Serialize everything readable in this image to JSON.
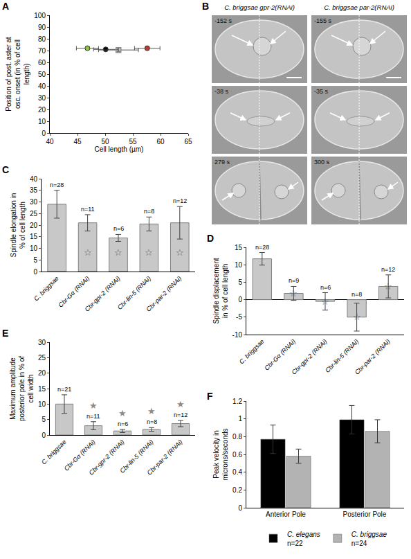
{
  "chart_data": [
    {
      "panel": "A",
      "type": "scatter",
      "xlabel": "Cell length (µm)",
      "ylabel": "Position of post. aster at osc. onset (in % of cell length)",
      "xlim": [
        40,
        65
      ],
      "xticks": [
        40,
        45,
        50,
        55,
        60,
        65
      ],
      "ylim": [
        0,
        100
      ],
      "yticks": [
        0,
        10,
        20,
        30,
        40,
        50,
        60,
        70,
        80,
        90,
        100
      ],
      "grid": false,
      "series": [
        {
          "color": "#8cc63f",
          "marker": "circle",
          "x": [
            46.8
          ],
          "values": [
            72
          ],
          "x_error": [
            2.0
          ],
          "y_error": [
            1.2
          ]
        },
        {
          "color": "#000000",
          "marker": "circle",
          "x": [
            50.1
          ],
          "values": [
            71
          ],
          "x_error": [
            2.2
          ],
          "y_error": [
            1.3
          ]
        },
        {
          "color": "#8c8c8c",
          "marker": "square-open",
          "x": [
            52.4
          ],
          "values": [
            70.5
          ],
          "x_error": [
            3.6
          ],
          "y_error": [
            1.5
          ]
        },
        {
          "color": "#c0392b",
          "marker": "circle",
          "x": [
            57.6
          ],
          "values": [
            72
          ],
          "x_error": [
            2.3
          ],
          "y_error": [
            1.5
          ]
        }
      ]
    },
    {
      "panel": "C",
      "type": "bar",
      "ylabel": "Spindle elongation in % of cell length",
      "categories": [
        "C. briggsae",
        "Cbr-Gα (RNAi)",
        "Cbr-gpr-2 (RNAi)",
        "Cbr-lin-5 (RNAi)",
        "Cbr-par-2 (RNAi)"
      ],
      "values": [
        29,
        21,
        14.5,
        20.5,
        21
      ],
      "errors": [
        6,
        3.5,
        1.5,
        3,
        7
      ],
      "n": [
        "n=28",
        "n=11",
        "n=6",
        "n=8",
        "n=12"
      ],
      "significant": [
        false,
        true,
        true,
        true,
        true
      ],
      "significance_symbol": "☆",
      "color": "#c8c8c8",
      "ylim": [
        0,
        40
      ],
      "yticks": [
        0,
        5,
        10,
        15,
        20,
        25,
        30,
        35,
        40
      ],
      "grid": false
    },
    {
      "panel": "D",
      "type": "bar",
      "ylabel": "Spindle displacement in % of cell length",
      "categories": [
        "C. briggsae",
        "Cbr-Gα (RNAi)",
        "Cbr-gpr-2 (RNAi)",
        "Cbr-lin-5 (RNAi)",
        "Cbr-par-2 (RNAi)"
      ],
      "values": [
        11.7,
        1.8,
        -0.5,
        -5,
        3.8
      ],
      "errors": [
        1.8,
        2,
        2.5,
        4,
        3.3
      ],
      "n": [
        "n=28",
        "n=9",
        "n=6",
        "n=8",
        "n=12"
      ],
      "significant": [
        false,
        true,
        true,
        true,
        true
      ],
      "significance_symbol": "☆",
      "color": "#c8c8c8",
      "ylim": [
        -10,
        15
      ],
      "yticks": [
        -10,
        -5,
        0,
        5,
        10,
        15
      ],
      "grid": false
    },
    {
      "panel": "E",
      "type": "bar",
      "ylabel": "Maximum amplitude posterior pole in % of cell width",
      "categories": [
        "C. briggsae",
        "Cbr-Gα (RNAi)",
        "Cbr-gpr-2 (RNAi)",
        "Cbr-lin-5 (RNAi)",
        "Cbr-par-2 (RNAi)"
      ],
      "values": [
        10,
        3,
        1.3,
        1.8,
        3.7
      ],
      "errors": [
        3,
        1.3,
        0.5,
        0.6,
        1
      ],
      "n": [
        "n=21",
        "n=11",
        "n=6",
        "n=8",
        "n=12"
      ],
      "significant": [
        false,
        true,
        true,
        true,
        true
      ],
      "significance_symbol": "★",
      "color": "#c8c8c8",
      "ylim": [
        0,
        30
      ],
      "yticks": [
        0,
        5,
        10,
        15,
        20,
        25,
        30
      ],
      "grid": false
    },
    {
      "panel": "F",
      "type": "bar",
      "ylabel": "Peak velocity in microns/seconds",
      "categories": [
        "Anterior Pole",
        "Posterior Pole"
      ],
      "series": [
        {
          "name": "C. elegans",
          "n": "n=22",
          "color": "#000000",
          "values": [
            0.77,
            0.99
          ],
          "errors": [
            0.16,
            0.16
          ]
        },
        {
          "name": "C. briggsae",
          "n": "n=24",
          "color": "#b3b3b3",
          "values": [
            0.58,
            0.86
          ],
          "errors": [
            0.08,
            0.13
          ]
        }
      ],
      "ylim": [
        0,
        1.2
      ],
      "yticks": [
        0,
        0.2,
        0.4,
        0.6,
        0.8,
        1,
        1.2
      ],
      "legend": "bottom",
      "grid": false
    }
  ],
  "panel_b": {
    "panel": "B",
    "columns": [
      {
        "title": "C. briggsae gpr-2(RNAi)",
        "times": [
          "-152 s",
          "-38 s",
          "279 s"
        ]
      },
      {
        "title": "C. briggsae par-2(RNAi)",
        "times": [
          "-155 s",
          "-35 s",
          "300 s"
        ]
      }
    ]
  }
}
